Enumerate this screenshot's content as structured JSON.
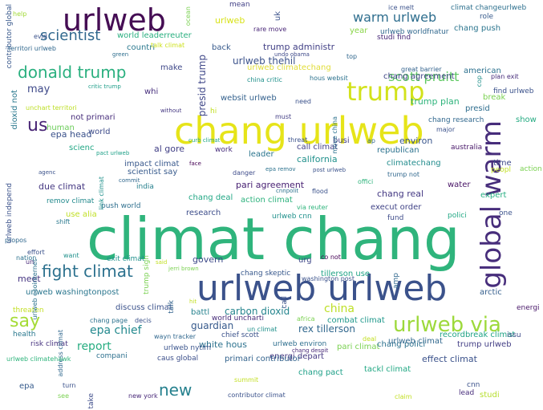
{
  "words": [
    {
      "text": "climat chang",
      "color": "#2fb47c"
    },
    {
      "text": "chang urlweb",
      "color": "#e6e419"
    },
    {
      "text": "urlweb urlweb",
      "color": "#3b528b"
    },
    {
      "text": "urlweb",
      "color": "#450d54"
    },
    {
      "text": "global warm",
      "color": "#472d7b"
    },
    {
      "text": "trump",
      "color": "#d2e21b"
    },
    {
      "text": "urlweb via",
      "color": "#9dd93b"
    },
    {
      "text": "new",
      "color": "#26818e"
    },
    {
      "text": "fight climat",
      "color": "#2c718e"
    },
    {
      "text": "donald trump",
      "color": "#2ab07f"
    },
    {
      "text": "scientist",
      "color": "#31688e"
    },
    {
      "text": "warm urlweb",
      "color": "#2e6e8e"
    },
    {
      "text": "scott pruitt",
      "color": "#5ec962"
    },
    {
      "text": "us",
      "color": "#482475"
    },
    {
      "text": "say",
      "color": "#a5db36"
    },
    {
      "text": "report",
      "color": "#27ad81"
    },
    {
      "text": "epa chief",
      "color": "#23898e"
    },
    {
      "text": "rex tillerson",
      "color": "#31688e"
    },
    {
      "text": "guardian",
      "color": "#375a8c"
    },
    {
      "text": "carbon dioxid",
      "color": "#25858e"
    },
    {
      "text": "china",
      "color": "#bddf26"
    },
    {
      "text": "may",
      "color": "#3e4989"
    },
    {
      "text": "urlweb thehil",
      "color": "#3b528b"
    },
    {
      "text": "urlweb climatechang",
      "color": "#e1dd37"
    },
    {
      "text": "trump administr",
      "color": "#424086"
    },
    {
      "text": "chang agreement",
      "color": "#404688"
    },
    {
      "text": "american",
      "color": "#2c718e"
    },
    {
      "text": "presid trump",
      "color": "#3f4788"
    },
    {
      "text": "contributor global",
      "color": "#38588c"
    },
    {
      "text": "urlweb",
      "color": "#d8e219"
    },
    {
      "text": "climat changeurlweb",
      "color": "#2d708e"
    },
    {
      "text": "chang push",
      "color": "#2b758e"
    },
    {
      "text": "world leaderreuter",
      "color": "#29af7f"
    },
    {
      "text": "year",
      "color": "#89d548"
    },
    {
      "text": "urlweb worldfnatur",
      "color": "#31688e"
    },
    {
      "text": "studi find",
      "color": "#482878"
    },
    {
      "text": "back",
      "color": "#375a8c"
    },
    {
      "text": "countri",
      "color": "#2a788e"
    },
    {
      "text": "talk climat",
      "color": "#cde11d"
    },
    {
      "text": "make",
      "color": "#3f4889"
    },
    {
      "text": "whi",
      "color": "#472f7d"
    },
    {
      "text": "websit urlweb",
      "color": "#34618d"
    },
    {
      "text": "trump plan",
      "color": "#2fb47c"
    },
    {
      "text": "break",
      "color": "#7ad151"
    },
    {
      "text": "find urlweb",
      "color": "#3b528b"
    },
    {
      "text": "presid",
      "color": "#2e6d8e"
    },
    {
      "text": "chang research",
      "color": "#31688e"
    },
    {
      "text": "not primari",
      "color": "#472d7b"
    },
    {
      "text": "world",
      "color": "#3e4c8a"
    },
    {
      "text": "human",
      "color": "#6ccd5a"
    },
    {
      "text": "dioxid not",
      "color": "#2a788e"
    },
    {
      "text": "epa head",
      "color": "#3b528b"
    },
    {
      "text": "al gore",
      "color": "#424086"
    },
    {
      "text": "scienc",
      "color": "#22a785"
    },
    {
      "text": "impact climat",
      "color": "#38588c"
    },
    {
      "text": "scientist say",
      "color": "#375a8c"
    },
    {
      "text": "india",
      "color": "#27808e"
    },
    {
      "text": "leader",
      "color": "#2b758e"
    },
    {
      "text": "call climat",
      "color": "#424086"
    },
    {
      "text": "busi",
      "color": "#433e85"
    },
    {
      "text": "environ",
      "color": "#39558c"
    },
    {
      "text": "republican",
      "color": "#2c728e"
    },
    {
      "text": "california",
      "color": "#21918c"
    },
    {
      "text": "climatechang",
      "color": "#228c8d"
    },
    {
      "text": "time",
      "color": "#3e4989"
    },
    {
      "text": "show",
      "color": "#25ab82"
    },
    {
      "text": "australia",
      "color": "#481769"
    },
    {
      "text": "due climat",
      "color": "#453882"
    },
    {
      "text": "pari agreement",
      "color": "#482173"
    },
    {
      "text": "chang deal",
      "color": "#22a785"
    },
    {
      "text": "action climat",
      "color": "#2db27d"
    },
    {
      "text": "chang real",
      "color": "#443983"
    },
    {
      "text": "water",
      "color": "#471365"
    },
    {
      "text": "expert",
      "color": "#26ad81"
    },
    {
      "text": "remov climat",
      "color": "#238a8d"
    },
    {
      "text": "push world",
      "color": "#2e6f8e"
    },
    {
      "text": "research",
      "color": "#3d4d8a"
    },
    {
      "text": "urlweb cnn",
      "color": "#21918c"
    },
    {
      "text": "execut order",
      "color": "#414487"
    },
    {
      "text": "use alia",
      "color": "#c0df25"
    },
    {
      "text": "govern",
      "color": "#3e4a89"
    },
    {
      "text": "urg",
      "color": "#3f4889"
    },
    {
      "text": "tillerson use",
      "color": "#20a386"
    },
    {
      "text": "chang skeptic",
      "color": "#38588c"
    },
    {
      "text": "meet",
      "color": "#453581"
    },
    {
      "text": "urlweb washingtonpost",
      "color": "#2a768e"
    },
    {
      "text": "discuss climat",
      "color": "#3b528b"
    },
    {
      "text": "battl",
      "color": "#26828e"
    },
    {
      "text": "world uncharti",
      "color": "#472c7a"
    },
    {
      "text": "combat climat",
      "color": "#1f988b"
    },
    {
      "text": "chief scott",
      "color": "#3b528b"
    },
    {
      "text": "urlweb environ",
      "color": "#2e6f8e"
    },
    {
      "text": "energi depart",
      "color": "#453882"
    },
    {
      "text": "white hous",
      "color": "#2c728e"
    },
    {
      "text": "urlweb nytim",
      "color": "#3a548c"
    },
    {
      "text": "primari contributor",
      "color": "#33638d"
    },
    {
      "text": "pari climat",
      "color": "#7ad151"
    },
    {
      "text": "chang polici",
      "color": "#2c718e"
    },
    {
      "text": "trump urlweb",
      "color": "#433e85"
    },
    {
      "text": "effect climat",
      "color": "#3b528b"
    },
    {
      "text": "tackl climat",
      "color": "#22a884"
    },
    {
      "text": "chang pact",
      "color": "#1fa088"
    },
    {
      "text": "recordbreak climat",
      "color": "#20a386"
    },
    {
      "text": "urlweb climat",
      "color": "#31688e"
    },
    {
      "text": "arctic",
      "color": "#355f8d"
    },
    {
      "text": "energi",
      "color": "#481769"
    },
    {
      "text": "issu",
      "color": "#3e4c8a"
    },
    {
      "text": "risk climat",
      "color": "#46337f"
    },
    {
      "text": "epa",
      "color": "#375b8d"
    },
    {
      "text": "compani",
      "color": "#2d708e"
    },
    {
      "text": "caus global",
      "color": "#3c4f8a"
    },
    {
      "text": "new york",
      "color": "#482878"
    },
    {
      "text": "lead",
      "color": "#472d7b"
    },
    {
      "text": "studi",
      "color": "#b5de2b"
    },
    {
      "text": "cnn",
      "color": "#3b528b"
    },
    {
      "text": "health",
      "color": "#2a788e"
    },
    {
      "text": "threaten",
      "color": "#c2df23"
    },
    {
      "text": "rare move",
      "color": "#482576"
    },
    {
      "text": "mean",
      "color": "#424086"
    },
    {
      "text": "uk",
      "color": "#3b528b"
    },
    {
      "text": "help",
      "color": "#a2da37"
    },
    {
      "text": "evid",
      "color": "#3b528b"
    },
    {
      "text": "territori urlweb",
      "color": "#31688e"
    },
    {
      "text": "green",
      "color": "#2e6e8e"
    },
    {
      "text": "critic trump",
      "color": "#1f9e89"
    },
    {
      "text": "unchart territori",
      "color": "#bddf26"
    },
    {
      "text": "hi",
      "color": "#c2df23"
    },
    {
      "text": "curb climat",
      "color": "#22a884"
    },
    {
      "text": "pact urlweb",
      "color": "#1fa188"
    },
    {
      "text": "face",
      "color": "#440154"
    },
    {
      "text": "commit",
      "color": "#31688e"
    },
    {
      "text": "danger",
      "color": "#3e4c8a"
    },
    {
      "text": "epa remov",
      "color": "#2c728e"
    },
    {
      "text": "post urlweb",
      "color": "#3b528b"
    },
    {
      "text": "agenc",
      "color": "#3b528b"
    },
    {
      "text": "link climat",
      "color": "#21918c"
    },
    {
      "text": "cnnpolit",
      "color": "#2c728e"
    },
    {
      "text": "flood",
      "color": "#3b528b"
    },
    {
      "text": "offici",
      "color": "#2fb47c"
    },
    {
      "text": "trump not",
      "color": "#31688e"
    },
    {
      "text": "peopl",
      "color": "#c2df23"
    },
    {
      "text": "action",
      "color": "#7ad151"
    },
    {
      "text": "ice melt",
      "color": "#3b528b"
    },
    {
      "text": "role",
      "color": "#375a8c"
    },
    {
      "text": "great barrier",
      "color": "#33638d"
    },
    {
      "text": "cop",
      "color": "#21918c"
    },
    {
      "text": "plan exit",
      "color": "#472d7b"
    },
    {
      "text": "undo obama",
      "color": "#3e4989"
    },
    {
      "text": "china critic",
      "color": "#21918c"
    },
    {
      "text": "hous websit",
      "color": "#2c728e"
    },
    {
      "text": "top",
      "color": "#31688e"
    },
    {
      "text": "without",
      "color": "#453882"
    },
    {
      "text": "must",
      "color": "#433e85"
    },
    {
      "text": "need",
      "color": "#3b528b"
    },
    {
      "text": "move china",
      "color": "#2c728e"
    },
    {
      "text": "threat",
      "color": "#3b528b"
    },
    {
      "text": "ap",
      "color": "#31688e"
    },
    {
      "text": "major",
      "color": "#3b528b"
    },
    {
      "text": "work",
      "color": "#472d7b"
    },
    {
      "text": "fund",
      "color": "#3e4c8a"
    },
    {
      "text": "polici",
      "color": "#22a884"
    },
    {
      "text": "one",
      "color": "#3b528b"
    },
    {
      "text": "via reuter",
      "color": "#2fb47c"
    },
    {
      "text": "trump sign",
      "color": "#7ad151"
    },
    {
      "text": "urlweb independ",
      "color": "#3b528b"
    },
    {
      "text": "propos",
      "color": "#31688e"
    },
    {
      "text": "urlweb ecointernet",
      "color": "#2c728e"
    },
    {
      "text": "shift",
      "color": "#2a788e"
    },
    {
      "text": "want",
      "color": "#21918c"
    },
    {
      "text": "effort",
      "color": "#3b528b"
    },
    {
      "text": "nation",
      "color": "#2c728e"
    },
    {
      "text": "un",
      "color": "#482878"
    },
    {
      "text": "exit climat",
      "color": "#21918c"
    },
    {
      "text": "said",
      "color": "#c2df23"
    },
    {
      "text": "jerri brown",
      "color": "#7ad151"
    },
    {
      "text": "co not",
      "color": "#440154"
    },
    {
      "text": "washington post",
      "color": "#3b528b"
    },
    {
      "text": "amp",
      "color": "#31688e"
    },
    {
      "text": "call",
      "color": "#3b528b"
    },
    {
      "text": "talk",
      "color": "#33638d"
    },
    {
      "text": "hit",
      "color": "#c2df23"
    },
    {
      "text": "africa",
      "color": "#7ad151"
    },
    {
      "text": "address climat",
      "color": "#31688e"
    },
    {
      "text": "chang page",
      "color": "#2c728e"
    },
    {
      "text": "decis",
      "color": "#3b528b"
    },
    {
      "text": "wayn tracker",
      "color": "#31688e"
    },
    {
      "text": "un climat",
      "color": "#21918c"
    },
    {
      "text": "chang despit",
      "color": "#482878"
    },
    {
      "text": "deal",
      "color": "#c2df23"
    },
    {
      "text": "urlweb climatehawk",
      "color": "#2fb47c"
    },
    {
      "text": "turn",
      "color": "#3b528b"
    },
    {
      "text": "see",
      "color": "#7ad151"
    },
    {
      "text": "summit",
      "color": "#c2df23"
    },
    {
      "text": "contributor climat",
      "color": "#3b528b"
    },
    {
      "text": "claim",
      "color": "#c2df23"
    },
    {
      "text": "take",
      "color": "#3e4c8a"
    },
    {
      "text": "ocean",
      "color": "#7ad151"
    }
  ]
}
